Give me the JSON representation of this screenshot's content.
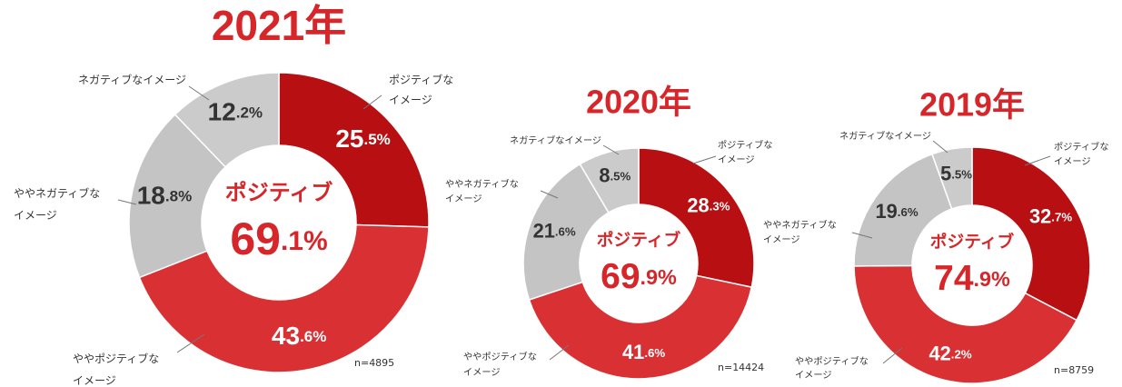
{
  "chart_data": [
    {
      "type": "pie",
      "title": "2021年",
      "categories": [
        "ポジティブな\nイメージ",
        "ややポジティブな\nイメージ",
        "ややネガティブな\nイメージ",
        "ネガティブなイメージ"
      ],
      "values": [
        25.5,
        43.6,
        18.8,
        12.2
      ],
      "value_labels": [
        "25.5%",
        "43.6%",
        "18.8%",
        "12.2%"
      ],
      "colors": [
        "#b80f12",
        "#d93034",
        "#c4c4c4",
        "#cbcbcb"
      ],
      "center_label": "ポジティブ",
      "center_value_label": "69.1%",
      "note": "n=4895"
    },
    {
      "type": "pie",
      "title": "2020年",
      "categories": [
        "ポジティブな\nイメージ",
        "ややポジティブな\nイメージ",
        "ややネガティブな\nイメージ",
        "ネガティブなイメージ"
      ],
      "values": [
        28.3,
        41.6,
        21.6,
        8.5
      ],
      "value_labels": [
        "28.3%",
        "41.6%",
        "21.6%",
        "8.5%"
      ],
      "colors": [
        "#b80f12",
        "#d93034",
        "#c4c4c4",
        "#cbcbcb"
      ],
      "center_label": "ポジティブ",
      "center_value_label": "69.9%",
      "note": "n=14424"
    },
    {
      "type": "pie",
      "title": "2019年",
      "categories": [
        "ポジティブな\nイメージ",
        "ややポジティブな\nイメージ",
        "ややネガティブな\nイメージ",
        "ネガティブなイメージ"
      ],
      "values": [
        32.7,
        42.2,
        19.6,
        5.5
      ],
      "value_labels": [
        "32.7%",
        "42.2%",
        "19.6%",
        "5.5%"
      ],
      "colors": [
        "#b80f12",
        "#d93034",
        "#c4c4c4",
        "#cbcbcb"
      ],
      "center_label": "ポジティブ",
      "center_value_label": "74.9%",
      "note": "n=8759"
    }
  ]
}
